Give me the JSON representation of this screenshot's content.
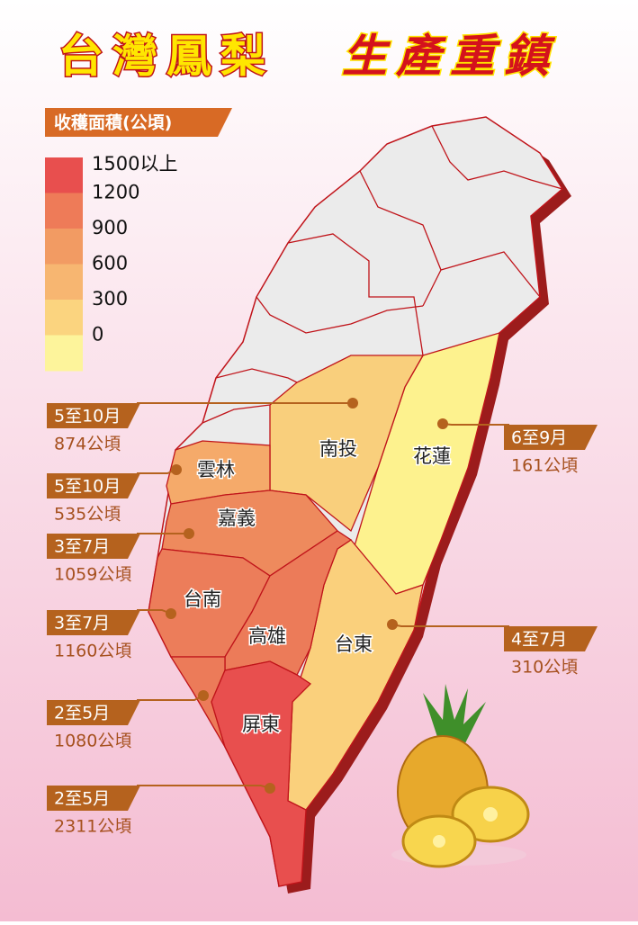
{
  "title": {
    "part1": "台灣鳳梨",
    "part2": "生產重鎮"
  },
  "legend": {
    "title": "收穫面積(公頃)",
    "items": [
      {
        "label": "1500以上",
        "color": "#e84f4e"
      },
      {
        "label": "1200",
        "color": "#ee7b58"
      },
      {
        "label": "900",
        "color": "#f29b63"
      },
      {
        "label": "600",
        "color": "#f7b671"
      },
      {
        "label": "300",
        "color": "#fbd47f"
      },
      {
        "label": "0",
        "color": "#fdf49b"
      }
    ]
  },
  "regions": [
    {
      "name": "南投",
      "season": "5至10月",
      "area": "874公頃",
      "color": "#f9cf7c"
    },
    {
      "name": "雲林",
      "season": "5至10月",
      "area": "535公頃",
      "color": "#f5aa6a"
    },
    {
      "name": "嘉義",
      "season": "3至7月",
      "area": "1059公頃",
      "color": "#ee8a5d"
    },
    {
      "name": "台南",
      "season": "3至7月",
      "area": "1160公頃",
      "color": "#ec7d5a"
    },
    {
      "name": "高雄",
      "season": "2至5月",
      "area": "1080公頃",
      "color": "#ec7b59"
    },
    {
      "name": "屏東",
      "season": "2至5月",
      "area": "2311公頃",
      "color": "#e84f4e"
    },
    {
      "name": "花蓮",
      "season": "6至9月",
      "area": "161公頃",
      "color": "#fdf28e"
    },
    {
      "name": "台東",
      "season": "4至7月",
      "area": "310公頃",
      "color": "#fad07c"
    }
  ]
}
